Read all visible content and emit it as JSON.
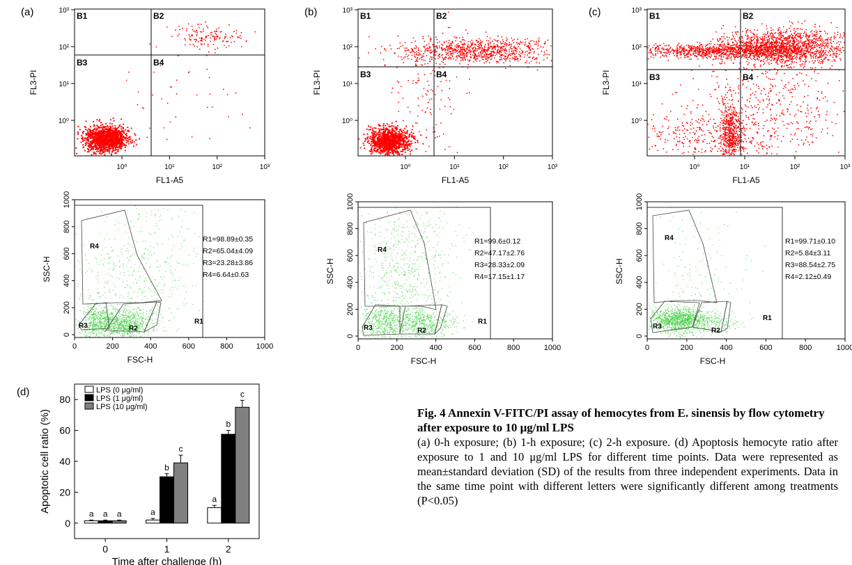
{
  "panel_labels": [
    "(a)",
    "(b)",
    "(c)",
    "(d)"
  ],
  "flow": {
    "x_label": "FL1-A5",
    "y_label": "FL3-PI",
    "x_ticks": [
      "10⁰",
      "10¹",
      "10²",
      "10³"
    ],
    "y_ticks": [
      "10⁰",
      "10¹",
      "10²",
      "10³"
    ],
    "quadrants": [
      "B1",
      "B2",
      "B3",
      "B4"
    ]
  },
  "scatter": {
    "x_label": "FSC-H",
    "y_label": "SSC-H",
    "x_ticks": [
      "0",
      "200",
      "400",
      "600",
      "800",
      "1000"
    ],
    "y_ticks": [
      "0",
      "200",
      "400",
      "600",
      "800",
      "1000"
    ],
    "regions": [
      "R1",
      "R2",
      "R3",
      "R4"
    ],
    "stats": [
      [
        "R1=98.89±0.35",
        "R2=65.04±4.09",
        "R3=23.28±3.86",
        "R4=6.64±0.63"
      ],
      [
        "R1=99.6±0.12",
        "R2=47.17±2.76",
        "R3=28.33±2.09",
        "R4=17.15±1.17"
      ],
      [
        "R1=99.71±0.10",
        "R2=5.84±3.11",
        "R3=88.54±2.75",
        "R4=2.12±0.49"
      ]
    ]
  },
  "chart_data": {
    "type": "bar",
    "categories": [
      "0",
      "1",
      "2"
    ],
    "series": [
      {
        "name": "LPS (0 μg/ml)",
        "values": [
          1.5,
          2,
          10
        ],
        "errors": [
          0.5,
          1,
          1.5
        ],
        "letters": [
          "a",
          "a",
          "a"
        ],
        "color": "#ffffff"
      },
      {
        "name": "LPS (1 μg/ml)",
        "values": [
          1.5,
          30,
          57.5
        ],
        "errors": [
          0.5,
          2,
          2.5
        ],
        "letters": [
          "a",
          "b",
          "b"
        ],
        "color": "#000000"
      },
      {
        "name": "LPS (10 μg/ml)",
        "values": [
          1.5,
          39,
          75
        ],
        "errors": [
          0.5,
          5,
          4.5
        ],
        "letters": [
          "a",
          "c",
          "c"
        ],
        "color": "#808080"
      }
    ],
    "xlabel": "Time after challenge (h)",
    "ylabel": "Apoptotic cell ratio (%)",
    "yticks": [
      "0",
      "20",
      "40",
      "60",
      "80"
    ],
    "ylim": [
      -10,
      90
    ],
    "legend": "top-left"
  },
  "caption": {
    "title": "Fig. 4  Annexin V-FITC/PI assay of hemocytes from E. sinensis by flow cytometry after exposure to 10 μg/ml LPS",
    "body": "(a) 0-h exposure; (b) 1-h exposure; (c) 2-h exposure. (d) Apoptosis hemocyte ratio after exposure to 1 and 10 μg/ml LPS for different time points. Data were represented as mean±standard deviation (SD) of the results from three independent experiments. Data in the same time point with different letters were significantly different among treatments (P<0.05)"
  },
  "colors": {
    "flow_dots": "#ff0000",
    "scatter_dots": "#33cc33"
  }
}
